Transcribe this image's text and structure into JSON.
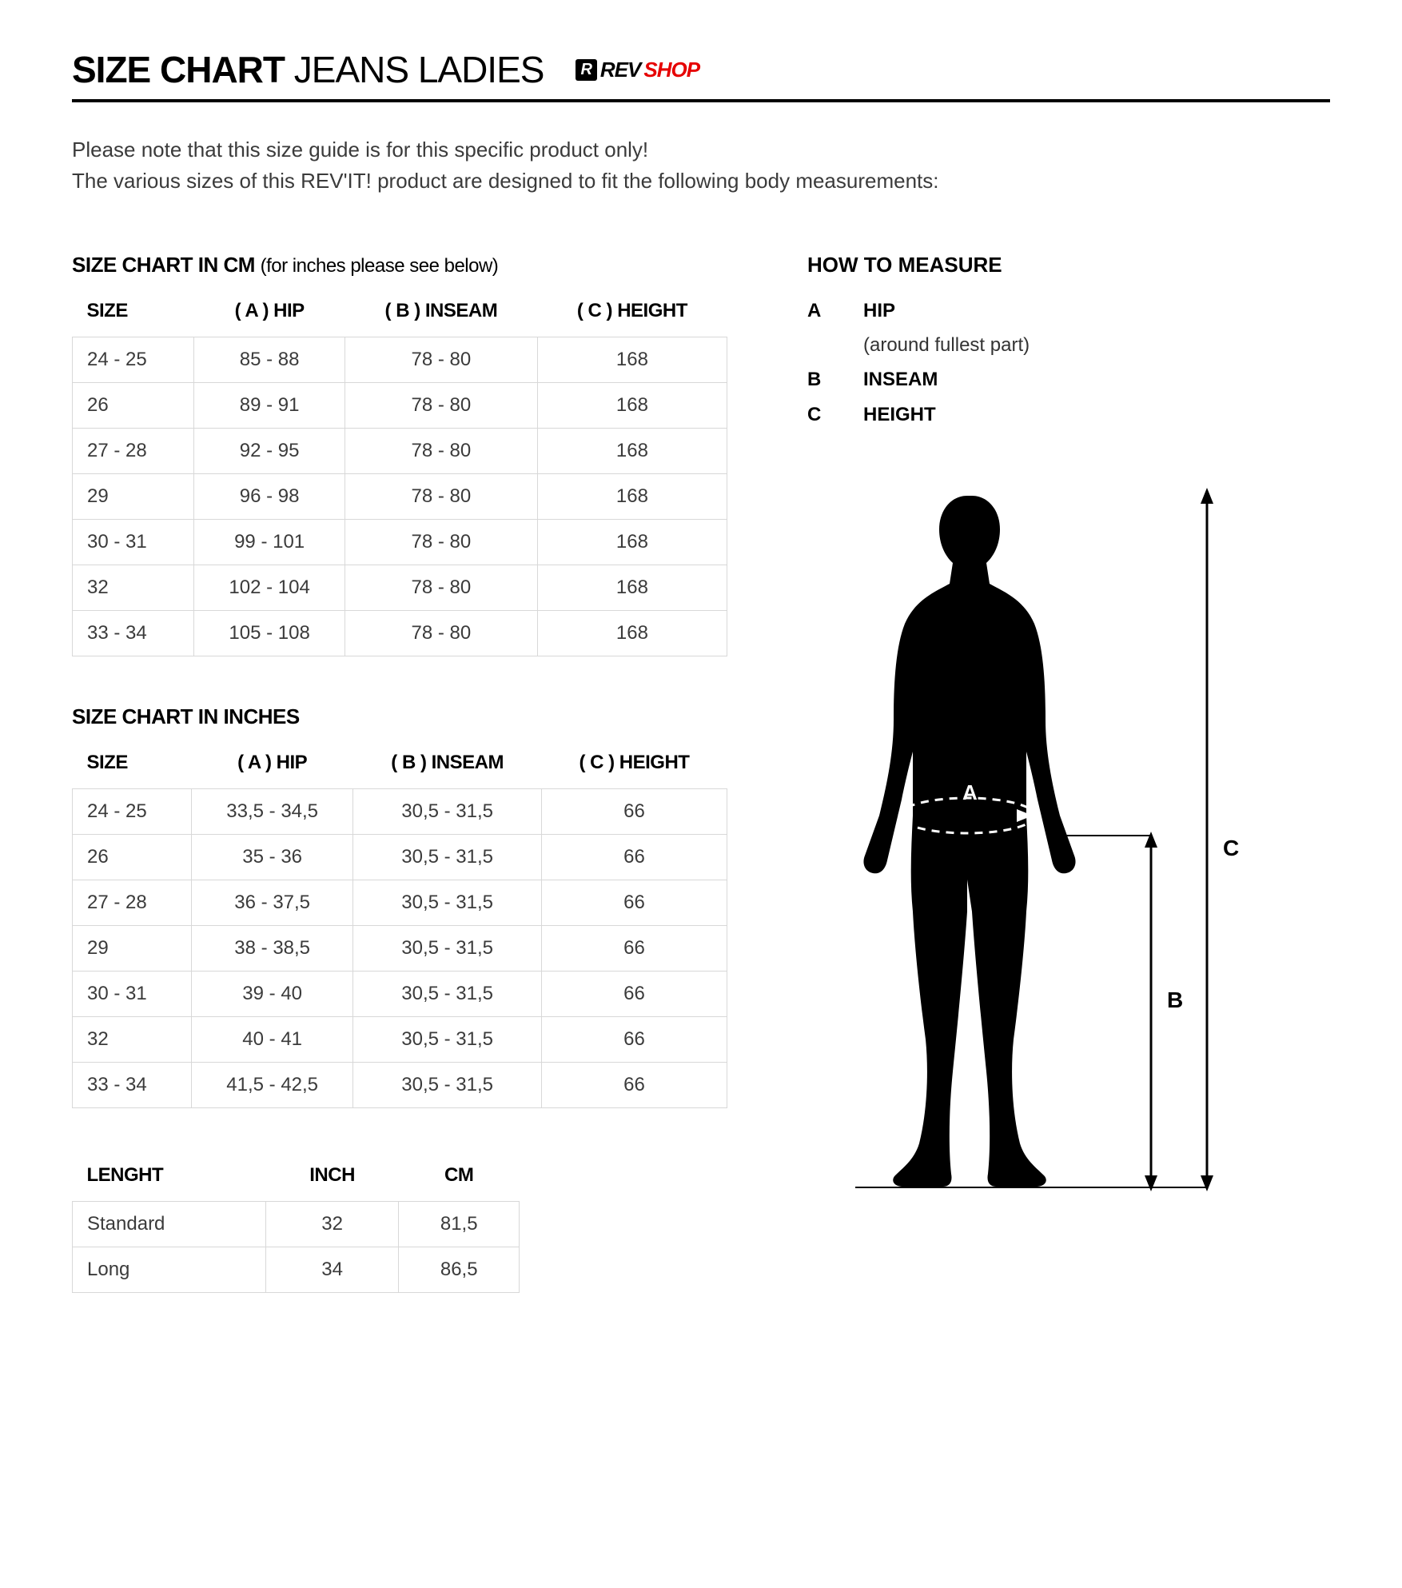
{
  "header": {
    "title_bold": "SIZE CHART",
    "title_light": "JEANS LADIES",
    "logo_badge": "R",
    "logo_rev": "REV",
    "logo_shop": "SHOP"
  },
  "intro": {
    "line1": "Please note that this size guide is for this specific product only!",
    "line2": "The various sizes of this REV'IT! product are designed to fit the following body measurements:"
  },
  "cm_table": {
    "title": "SIZE CHART IN CM",
    "subtitle": "(for inches please see below)",
    "columns": [
      "SIZE",
      "( A ) HIP",
      "( B ) INSEAM",
      "( C ) HEIGHT"
    ],
    "rows": [
      [
        "24 - 25",
        "85 - 88",
        "78 - 80",
        "168"
      ],
      [
        "26",
        "89 - 91",
        "78 - 80",
        "168"
      ],
      [
        "27 - 28",
        "92 - 95",
        "78 - 80",
        "168"
      ],
      [
        "29",
        "96 - 98",
        "78 - 80",
        "168"
      ],
      [
        "30 - 31",
        "99 - 101",
        "78 - 80",
        "168"
      ],
      [
        "32",
        "102 - 104",
        "78 - 80",
        "168"
      ],
      [
        "33 - 34",
        "105 - 108",
        "78 - 80",
        "168"
      ]
    ]
  },
  "in_table": {
    "title": "SIZE CHART IN INCHES",
    "columns": [
      "SIZE",
      "( A ) HIP",
      "( B ) INSEAM",
      "( C ) HEIGHT"
    ],
    "rows": [
      [
        "24 - 25",
        "33,5 - 34,5",
        "30,5 - 31,5",
        "66"
      ],
      [
        "26",
        "35 - 36",
        "30,5 - 31,5",
        "66"
      ],
      [
        "27 - 28",
        "36 - 37,5",
        "30,5 - 31,5",
        "66"
      ],
      [
        "29",
        "38 - 38,5",
        "30,5 - 31,5",
        "66"
      ],
      [
        "30 - 31",
        "39 - 40",
        "30,5 - 31,5",
        "66"
      ],
      [
        "32",
        "40 - 41",
        "30,5 - 31,5",
        "66"
      ],
      [
        "33 - 34",
        "41,5 - 42,5",
        "30,5 - 31,5",
        "66"
      ]
    ]
  },
  "length_table": {
    "columns": [
      "LENGHT",
      "INCH",
      "CM"
    ],
    "rows": [
      [
        "Standard",
        "32",
        "81,5"
      ],
      [
        "Long",
        "34",
        "86,5"
      ]
    ]
  },
  "measure": {
    "title": "HOW TO MEASURE",
    "items": [
      {
        "key": "A",
        "val": "HIP",
        "desc": "(around fullest part)"
      },
      {
        "key": "B",
        "val": "INSEAM",
        "desc": ""
      },
      {
        "key": "C",
        "val": "HEIGHT",
        "desc": ""
      }
    ],
    "figure": {
      "label_a": "A",
      "label_b": "B",
      "label_c": "C",
      "silhouette_color": "#000000",
      "arrow_color": "#000000",
      "dash_color": "#ffffff"
    }
  },
  "styling": {
    "border_color": "#d8d8d8",
    "text_color": "#3b3b3b",
    "accent_red": "#e60000"
  }
}
